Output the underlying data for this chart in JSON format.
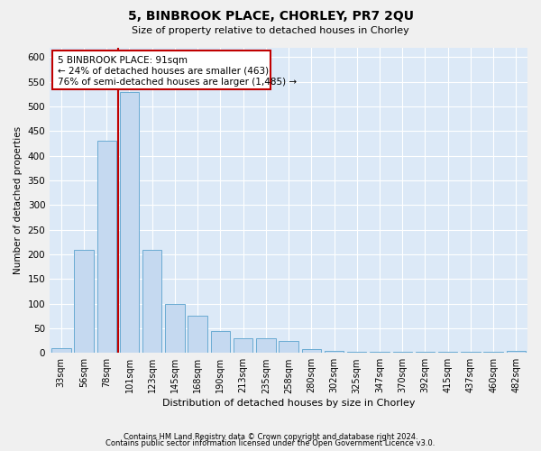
{
  "title": "5, BINBROOK PLACE, CHORLEY, PR7 2QU",
  "subtitle": "Size of property relative to detached houses in Chorley",
  "xlabel": "Distribution of detached houses by size in Chorley",
  "ylabel": "Number of detached properties",
  "categories": [
    "33sqm",
    "56sqm",
    "78sqm",
    "101sqm",
    "123sqm",
    "145sqm",
    "168sqm",
    "190sqm",
    "213sqm",
    "235sqm",
    "258sqm",
    "280sqm",
    "302sqm",
    "325sqm",
    "347sqm",
    "370sqm",
    "392sqm",
    "415sqm",
    "437sqm",
    "460sqm",
    "482sqm"
  ],
  "values": [
    10,
    210,
    430,
    530,
    210,
    100,
    75,
    45,
    30,
    30,
    25,
    8,
    5,
    3,
    3,
    3,
    3,
    3,
    3,
    3,
    5
  ],
  "bar_color": "#c5d9f0",
  "bar_edge_color": "#6aabd2",
  "red_line_x": 2.5,
  "ann_line1": "5 BINBROOK PLACE: 91sqm",
  "ann_line2": "← 24% of detached houses are smaller (463)",
  "ann_line3": "76% of semi-detached houses are larger (1,485) →",
  "ann_color": "#c00000",
  "ylim_max": 620,
  "yticks": [
    0,
    50,
    100,
    150,
    200,
    250,
    300,
    350,
    400,
    450,
    500,
    550,
    600
  ],
  "footer1": "Contains HM Land Registry data © Crown copyright and database right 2024.",
  "footer2": "Contains public sector information licensed under the Open Government Licence v3.0.",
  "plot_bg": "#dce9f7",
  "fig_bg": "#f0f0f0",
  "grid_color": "#ffffff"
}
